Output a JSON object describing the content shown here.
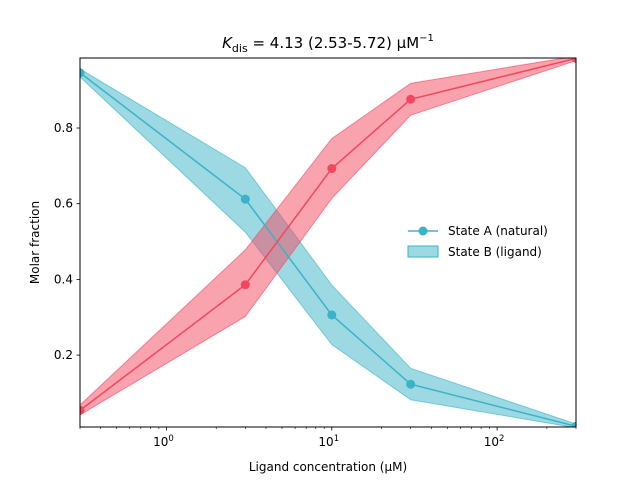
{
  "chart_data": {
    "type": "line",
    "title_main": "K",
    "title_sub": "dis",
    "title_rest": " = 4.13 (2.53-5.72) µM",
    "title_sup": "−1",
    "xlabel": "Ligand concentration (µM)",
    "ylabel": "Molar fraction",
    "xscale": "log",
    "xlim": [
      0.3,
      300
    ],
    "ylim": [
      0.01,
      0.985
    ],
    "x_ticks": [
      1,
      10,
      100
    ],
    "x_tick_labels": [
      {
        "base": "10",
        "exp": "0"
      },
      {
        "base": "10",
        "exp": "1"
      },
      {
        "base": "10",
        "exp": "2"
      }
    ],
    "y_ticks": [
      0.2,
      0.4,
      0.6,
      0.8
    ],
    "y_tick_labels": [
      "0.2",
      "0.4",
      "0.6",
      "0.8"
    ],
    "grid": false,
    "legend": {
      "placement": "center-right",
      "entries": [
        "State A (natural)",
        "State B (ligand)"
      ]
    },
    "x": [
      0.3,
      3,
      10,
      30,
      300
    ],
    "series": [
      {
        "name": "State A (natural)",
        "color": "#3ab3c8",
        "values": [
          0.946,
          0.612,
          0.306,
          0.123,
          0.012
        ],
        "band_upper": [
          0.956,
          0.695,
          0.385,
          0.165,
          0.018
        ],
        "band_lower": [
          0.935,
          0.525,
          0.228,
          0.082,
          0.008
        ]
      },
      {
        "name": "State B (ligand)",
        "color": "#f4475f",
        "values": [
          0.054,
          0.386,
          0.693,
          0.876,
          0.984
        ],
        "band_upper": [
          0.068,
          0.478,
          0.772,
          0.918,
          0.99
        ],
        "band_lower": [
          0.042,
          0.302,
          0.614,
          0.834,
          0.978
        ]
      }
    ]
  }
}
